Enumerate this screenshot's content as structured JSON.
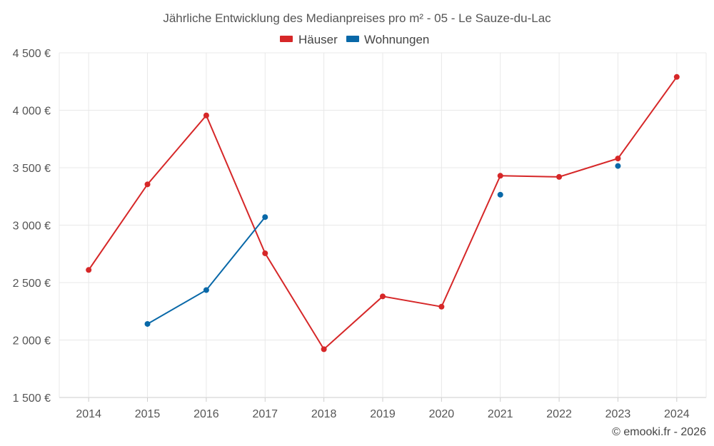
{
  "chart_data": {
    "type": "line",
    "title": "Jährliche Entwicklung des Medianpreises pro m² - 05 - Le Sauze-du-Lac",
    "categories": [
      "2014",
      "2015",
      "2016",
      "2017",
      "2018",
      "2019",
      "2020",
      "2021",
      "2022",
      "2023",
      "2024"
    ],
    "ylim": [
      1500,
      4500
    ],
    "yticks": [
      1500,
      2000,
      2500,
      3000,
      3500,
      4000,
      4500
    ],
    "ytick_labels": [
      "1 500 €",
      "2 000 €",
      "2 500 €",
      "3 000 €",
      "3 500 €",
      "4 000 €",
      "4 500 €"
    ],
    "grid": true,
    "legend_position": "top-center",
    "series": [
      {
        "name": "Häuser",
        "color": "#d62728",
        "values": [
          2610,
          3355,
          3955,
          2755,
          1920,
          2380,
          2290,
          3430,
          3420,
          3580,
          4290
        ]
      },
      {
        "name": "Wohnungen",
        "color": "#0868a8",
        "values": [
          null,
          2140,
          2435,
          3070,
          null,
          null,
          null,
          3265,
          null,
          3515,
          null
        ]
      }
    ]
  },
  "credit": "© emooki.fr - 2026"
}
